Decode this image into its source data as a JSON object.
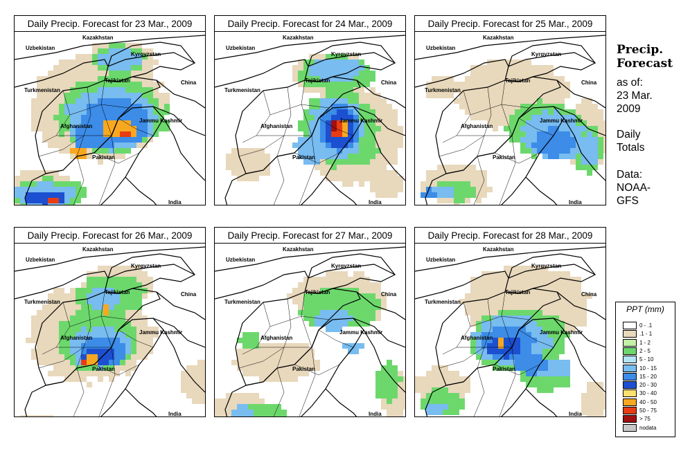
{
  "panels": [
    {
      "title": "Daily Precip. Forecast for  23 Mar., 2009",
      "precip_pattern": "heavy-central-and-southwest"
    },
    {
      "title": "Daily Precip. Forecast for  24 Mar., 2009",
      "precip_pattern": "heavy-northeast"
    },
    {
      "title": "Daily Precip. Forecast for  25 Mar., 2009",
      "precip_pattern": "light-east"
    },
    {
      "title": "Daily Precip. Forecast for  26 Mar., 2009",
      "precip_pattern": "moderate-central"
    },
    {
      "title": "Daily Precip. Forecast for  27 Mar., 2009",
      "precip_pattern": "light-scattered"
    },
    {
      "title": "Daily Precip. Forecast for  28 Mar., 2009",
      "precip_pattern": "moderate-central-east"
    }
  ],
  "map_labels": {
    "kazakhstan": "Kazakhstan",
    "uzbekistan": "Uzbekistan",
    "kyrgyzstan": "Kyrgyzstan",
    "tajikistan": "Tajikistan",
    "turkmenistan": "Turkmenistan",
    "china": "China",
    "afghanistan": "Afghanistan",
    "jammu_kashmir": "Jammu Kashmir",
    "pakistan": "Pakistan",
    "india": "India"
  },
  "sidebar": {
    "title_line1": "Precip.",
    "title_line2": "Forecast",
    "asof_line1": "as of:",
    "asof_line2": "23 Mar.",
    "asof_line3": "2009",
    "totals_line1": "Daily",
    "totals_line2": "Totals",
    "data_line1": "Data:",
    "data_line2": "NOAA-",
    "data_line3": "GFS"
  },
  "legend": {
    "title": "PPT (mm)",
    "items": [
      {
        "label": "0 - .1",
        "color": "#ffffff"
      },
      {
        "label": ".1 - 1",
        "color": "#e8d8bc"
      },
      {
        "label": "1 - 2",
        "color": "#c4f0a8"
      },
      {
        "label": "2 - 5",
        "color": "#6cd86c"
      },
      {
        "label": "5 - 10",
        "color": "#b4e4f8"
      },
      {
        "label": "10 - 15",
        "color": "#78bcf0"
      },
      {
        "label": "15 - 20",
        "color": "#3c8ce8"
      },
      {
        "label": "20 - 30",
        "color": "#1c50d0"
      },
      {
        "label": "30 - 40",
        "color": "#fce070"
      },
      {
        "label": "40 - 50",
        "color": "#f8a820"
      },
      {
        "label": "50 - 75",
        "color": "#e83c14"
      },
      {
        "label": "> 75",
        "color": "#a01010"
      },
      {
        "label": "nodata",
        "color": "#c8c8c8"
      }
    ]
  }
}
